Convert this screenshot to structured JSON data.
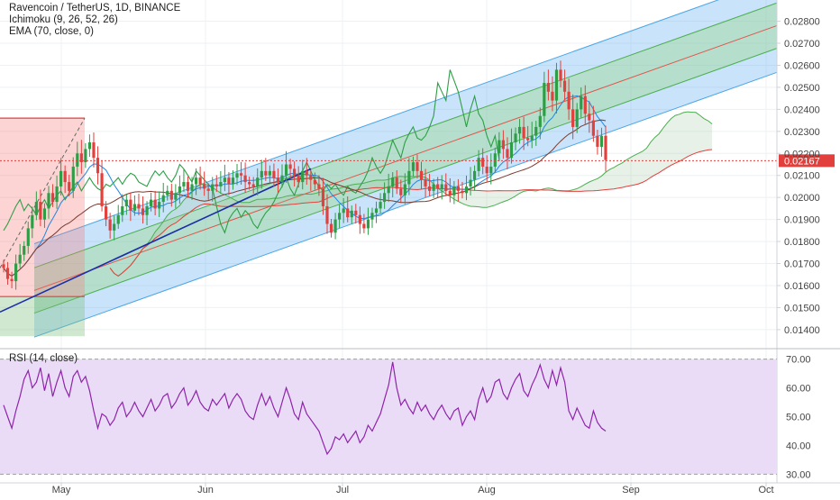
{
  "legend": {
    "title": "Ravencoin / TetherUS, 1D, BINANCE",
    "ichimoku": "Ichimoku (9, 26, 52, 26)",
    "ema": "EMA (70, close, 0)"
  },
  "rsi_legend": "RSI (14, close)",
  "colors": {
    "up": "#2e9e46",
    "down": "#e2403d",
    "channel_outer": "#4aa6e8",
    "channel_inner": "#4caf50",
    "channel_mid": "#e0554a",
    "trendline": "#1a2ea8",
    "rsi_line": "#8e24aa",
    "rsi_band": "#eadcf7",
    "last_price_bg": "#e2403d"
  },
  "chart_data": [
    {
      "type": "candlestick",
      "title": "Ravencoin / TetherUS, 1D, BINANCE",
      "x_tick_labels": [
        "May",
        "Jun",
        "Jul",
        "Aug",
        "Sep",
        "Oct"
      ],
      "y_tick_labels": [
        "0.01400",
        "0.01500",
        "0.01600",
        "0.01700",
        "0.01800",
        "0.01900",
        "0.02000",
        "0.02100",
        "0.02200",
        "0.02300",
        "0.02400",
        "0.02500",
        "0.02600",
        "0.02700",
        "0.02800"
      ],
      "ylim": [
        0.0133,
        0.0288
      ],
      "last_price": "0.02167",
      "closes": [
        0.0168,
        0.0163,
        0.0162,
        0.017,
        0.0174,
        0.0178,
        0.0186,
        0.0192,
        0.0198,
        0.019,
        0.0195,
        0.0202,
        0.0198,
        0.0205,
        0.0212,
        0.0207,
        0.0203,
        0.0214,
        0.022,
        0.0216,
        0.0222,
        0.0225,
        0.0218,
        0.0211,
        0.0196,
        0.019,
        0.0185,
        0.0188,
        0.0192,
        0.0196,
        0.0199,
        0.0194,
        0.0197,
        0.0195,
        0.0192,
        0.0196,
        0.0199,
        0.0195,
        0.0198,
        0.0201,
        0.0203,
        0.0199,
        0.0202,
        0.0205,
        0.0207,
        0.0203,
        0.0206,
        0.0209,
        0.0206,
        0.0204,
        0.0203,
        0.0206,
        0.0205,
        0.0207,
        0.0209,
        0.0206,
        0.0209,
        0.0211,
        0.021,
        0.0207,
        0.0206,
        0.0205,
        0.0209,
        0.0212,
        0.021,
        0.0212,
        0.0209,
        0.0207,
        0.021,
        0.0215,
        0.0213,
        0.021,
        0.0207,
        0.0212,
        0.021,
        0.0208,
        0.0206,
        0.0204,
        0.0196,
        0.0188,
        0.0184,
        0.019,
        0.0193,
        0.0195,
        0.0191,
        0.0194,
        0.0192,
        0.0188,
        0.0186,
        0.019,
        0.0193,
        0.0195,
        0.0198,
        0.0202,
        0.0205,
        0.0209,
        0.0204,
        0.0201,
        0.0206,
        0.0212,
        0.0216,
        0.0212,
        0.0208,
        0.0205,
        0.0203,
        0.0206,
        0.0204,
        0.0206,
        0.0203,
        0.0201,
        0.0205,
        0.0203,
        0.0202,
        0.0205,
        0.0208,
        0.0212,
        0.0218,
        0.0214,
        0.0211,
        0.0214,
        0.022,
        0.0226,
        0.0222,
        0.0218,
        0.0225,
        0.0229,
        0.0232,
        0.0227,
        0.0226,
        0.0228,
        0.0232,
        0.0237,
        0.0252,
        0.0248,
        0.0244,
        0.0258,
        0.0253,
        0.0248,
        0.024,
        0.0232,
        0.024,
        0.0246,
        0.0238,
        0.0235,
        0.0228,
        0.0223,
        0.0228,
        0.0217
      ]
    },
    {
      "type": "line",
      "title": "RSI (14, close)",
      "y_tick_labels": [
        "30.00",
        "40.00",
        "50.00",
        "60.00",
        "70.00"
      ],
      "ylim": [
        27,
        73
      ],
      "bands": [
        30,
        70
      ],
      "values": [
        54,
        50,
        46,
        52,
        57,
        63,
        66,
        60,
        62,
        67,
        59,
        65,
        57,
        62,
        66,
        60,
        57,
        64,
        66,
        62,
        64,
        59,
        52,
        46,
        51,
        50,
        47,
        49,
        53,
        55,
        50,
        52,
        55,
        52,
        50,
        53,
        56,
        52,
        54,
        57,
        58,
        53,
        55,
        58,
        60,
        54,
        56,
        59,
        55,
        53,
        52,
        56,
        54,
        56,
        58,
        53,
        56,
        58,
        56,
        52,
        50,
        49,
        54,
        58,
        54,
        57,
        53,
        50,
        55,
        60,
        56,
        51,
        49,
        55,
        51,
        49,
        47,
        45,
        41,
        37,
        39,
        43,
        42,
        44,
        41,
        43,
        45,
        41,
        43,
        47,
        45,
        48,
        51,
        56,
        61,
        69,
        60,
        54,
        56,
        53,
        51,
        55,
        52,
        54,
        51,
        49,
        52,
        54,
        51,
        49,
        52,
        53,
        47,
        50,
        52,
        49,
        56,
        60,
        55,
        57,
        62,
        63,
        58,
        56,
        60,
        63,
        65,
        59,
        57,
        61,
        64,
        68,
        63,
        60,
        66,
        61,
        67,
        62,
        52,
        49,
        53,
        50,
        47,
        46,
        52,
        48,
        46,
        45
      ]
    }
  ]
}
